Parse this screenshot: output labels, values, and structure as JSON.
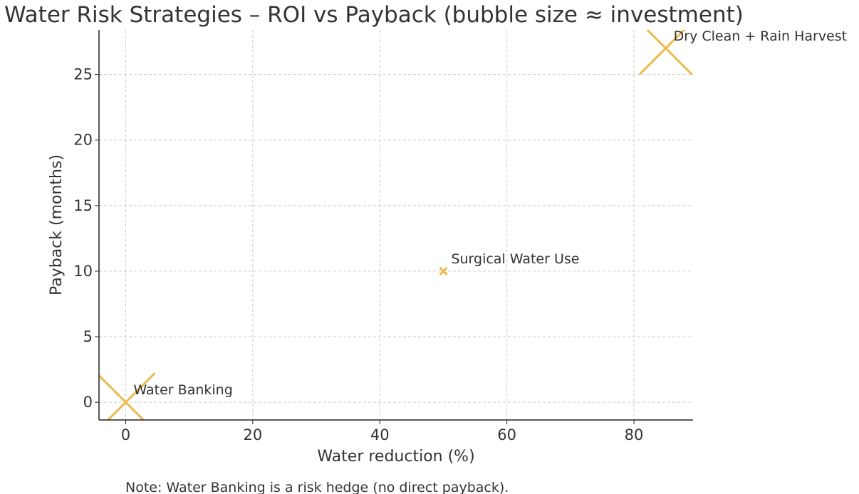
{
  "chart_data": {
    "type": "scatter",
    "title": "Water Risk Strategies – ROI vs Payback (bubble size ≈ investment)",
    "xlabel": "Water reduction (%)",
    "ylabel": "Payback (months)",
    "xlim": [
      -4.2,
      89.3
    ],
    "ylim": [
      -1.35,
      28.4
    ],
    "xticks": [
      0,
      20,
      40,
      60,
      80
    ],
    "yticks": [
      0,
      5,
      10,
      15,
      20,
      25
    ],
    "grid": true,
    "marker": "x",
    "color": "#EDB94A",
    "points": [
      {
        "label": "Water Banking",
        "x": 0,
        "y": 0,
        "investment_relative": 1.0
      },
      {
        "label": "Surgical Water Use",
        "x": 50,
        "y": 10,
        "investment_relative": 0.015
      },
      {
        "label": "Dry Clean + Rain Harvest",
        "x": 85,
        "y": 27,
        "investment_relative": 0.81
      }
    ],
    "note": "Note: Water Banking is a risk hedge (no direct payback)."
  }
}
